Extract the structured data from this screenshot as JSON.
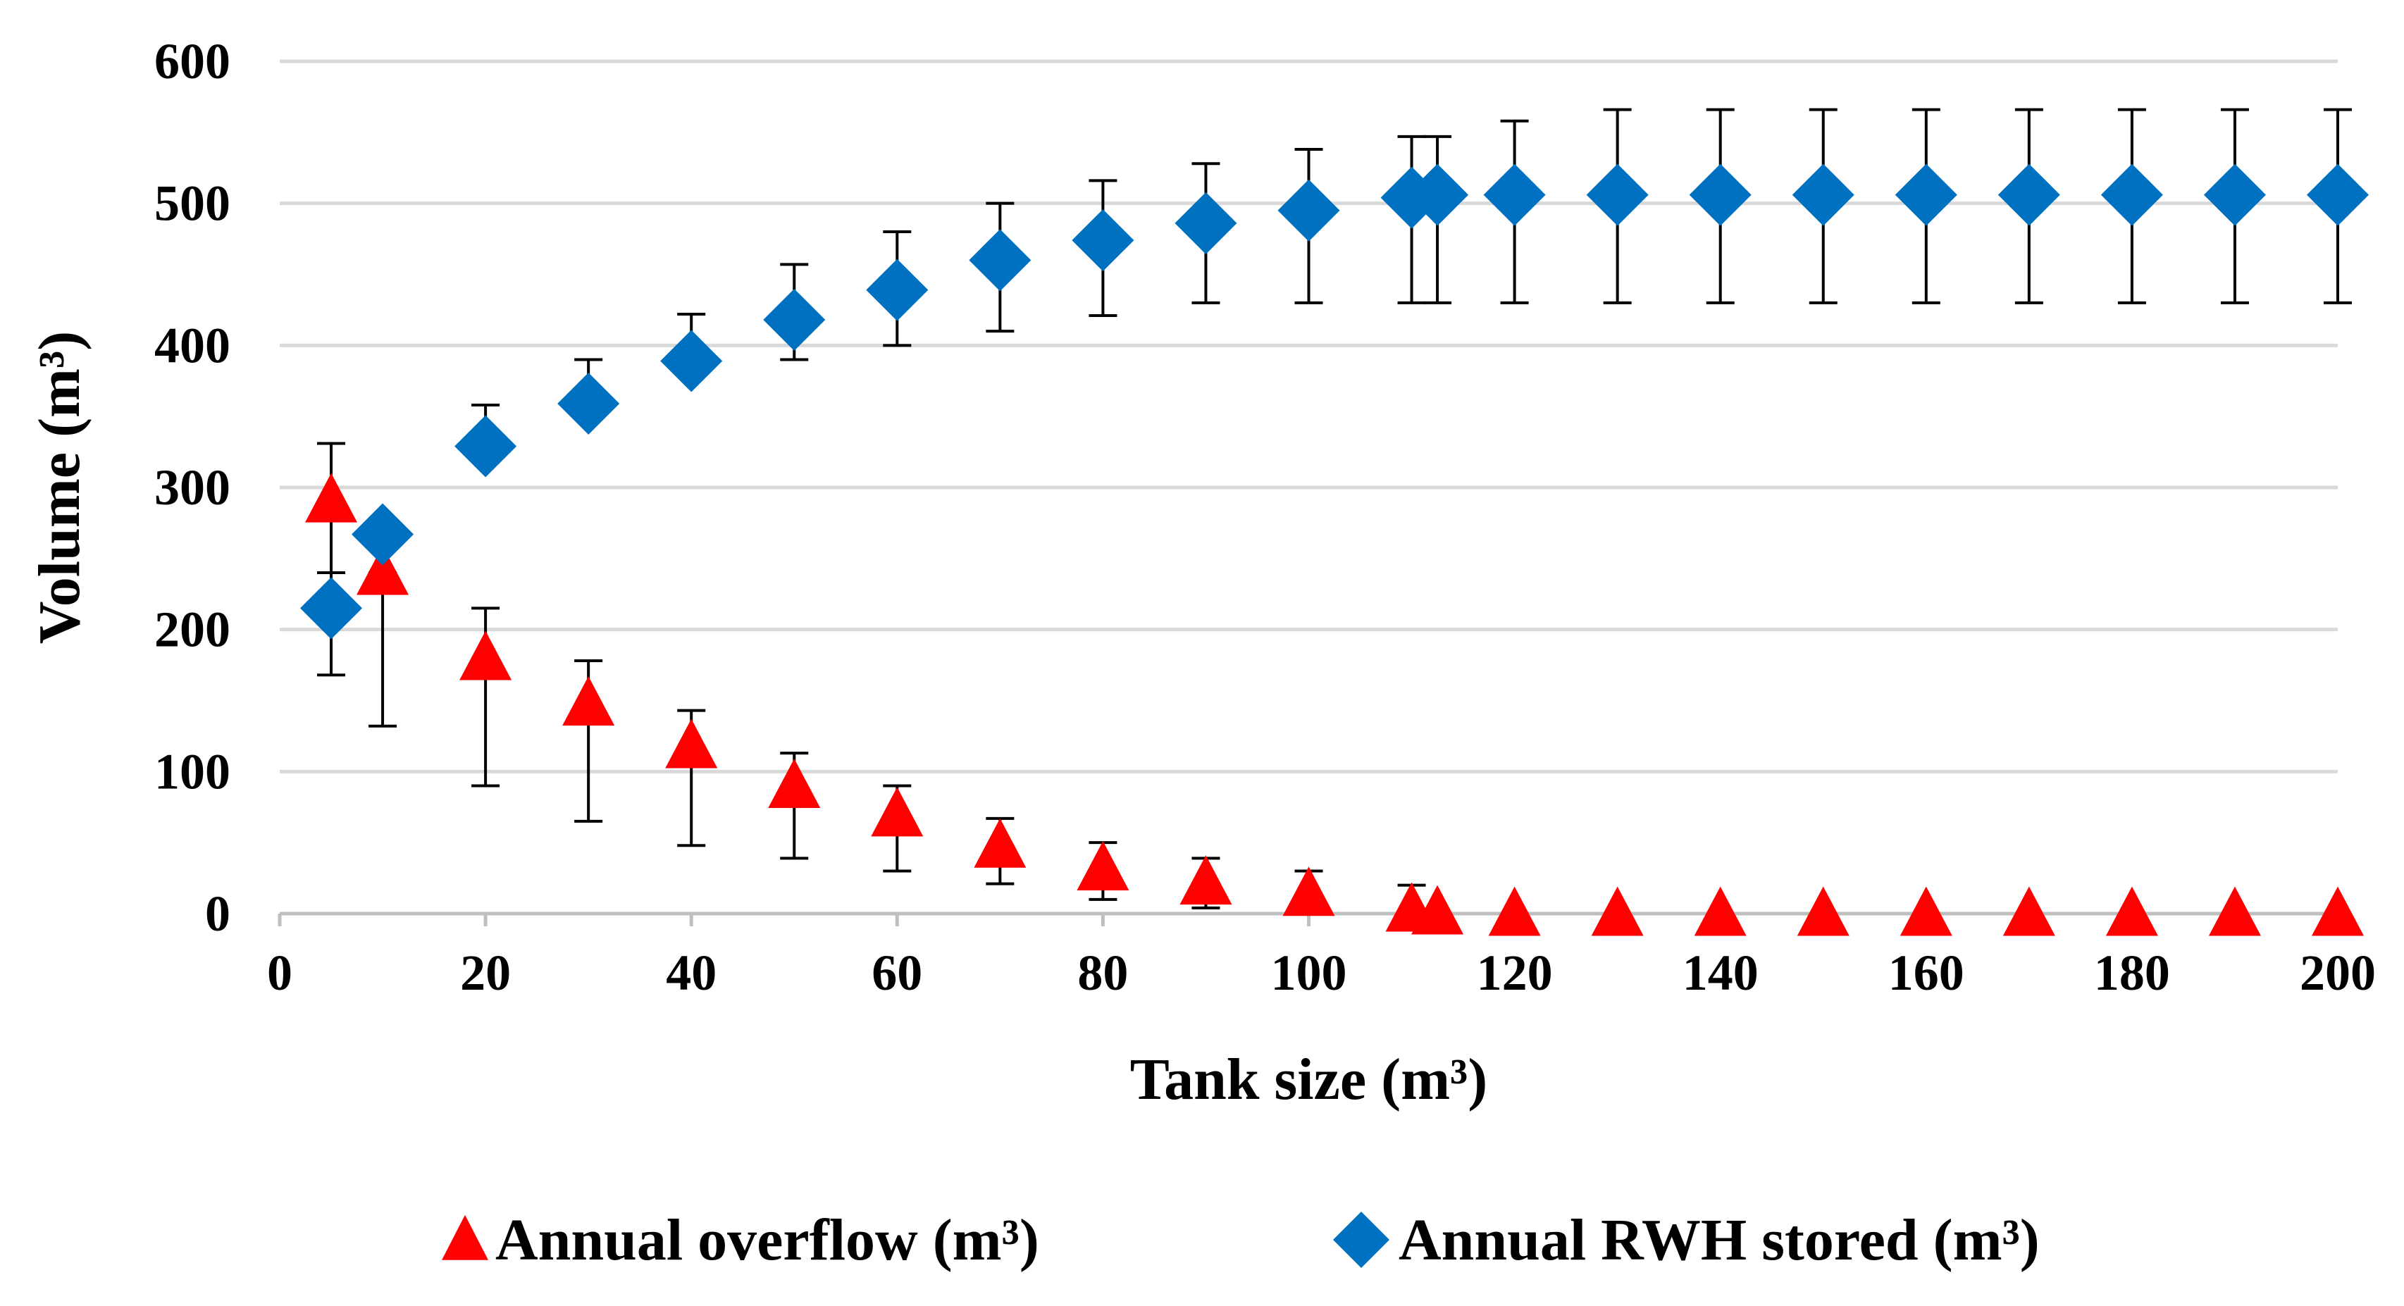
{
  "chart_data": {
    "type": "scatter",
    "title": "",
    "xlabel": "Tank size (m³)",
    "ylabel": "Volume (m³)",
    "xlim": [
      0,
      200
    ],
    "ylim": [
      0,
      600
    ],
    "x_ticks": [
      0,
      20,
      40,
      60,
      80,
      100,
      120,
      140,
      160,
      180,
      200
    ],
    "y_ticks": [
      0,
      100,
      200,
      300,
      400,
      500,
      600
    ],
    "x_tick_labels": [
      "0",
      "20",
      "40",
      "60",
      "80",
      "100",
      "120",
      "140",
      "160",
      "180",
      "200"
    ],
    "y_tick_labels": [
      "0",
      "100",
      "200",
      "300",
      "400",
      "500",
      "600"
    ],
    "grid": "horizontal",
    "legend_position": "bottom",
    "series": [
      {
        "name": "Annual overflow (m³)",
        "marker": "triangle",
        "color": "#ff0000",
        "x": [
          5,
          10,
          20,
          30,
          40,
          50,
          60,
          70,
          80,
          90,
          100,
          110,
          112.5,
          120,
          130,
          140,
          150,
          160,
          170,
          180,
          190,
          200
        ],
        "y": [
          291,
          240,
          180,
          148,
          118,
          90,
          70,
          48,
          32,
          22,
          14,
          3,
          1,
          0,
          0,
          0,
          0,
          0,
          0,
          0,
          0,
          0
        ],
        "err_high": [
          331,
          240,
          215,
          178,
          143,
          113,
          90,
          67,
          50,
          39,
          30,
          20,
          0,
          0,
          0,
          0,
          0,
          0,
          0,
          0,
          0,
          0
        ],
        "err_low": [
          240,
          132,
          90,
          65,
          48,
          39,
          30,
          21,
          10,
          4,
          0,
          0,
          0,
          0,
          0,
          0,
          0,
          0,
          0,
          0,
          0,
          0
        ]
      },
      {
        "name": "Annual RWH stored (m³)",
        "marker": "diamond",
        "color": "#0070c0",
        "x": [
          5,
          10,
          20,
          30,
          40,
          50,
          60,
          70,
          80,
          90,
          100,
          110,
          112.5,
          120,
          130,
          140,
          150,
          160,
          170,
          180,
          190,
          200
        ],
        "y": [
          215,
          267,
          329,
          359,
          389,
          418,
          439,
          460,
          474,
          486,
          495,
          504,
          506,
          506,
          506,
          506,
          506,
          506,
          506,
          506,
          506,
          506
        ],
        "err_high": [
          240,
          267,
          358,
          390,
          422,
          457,
          480,
          500,
          516,
          528,
          538,
          547,
          547,
          558,
          566,
          566,
          566,
          566,
          566,
          566,
          566,
          566
        ],
        "err_low": [
          168,
          267,
          329,
          359,
          389,
          390,
          400,
          410,
          421,
          430,
          430,
          430,
          430,
          430,
          430,
          430,
          430,
          430,
          430,
          430,
          430,
          430
        ]
      }
    ]
  }
}
